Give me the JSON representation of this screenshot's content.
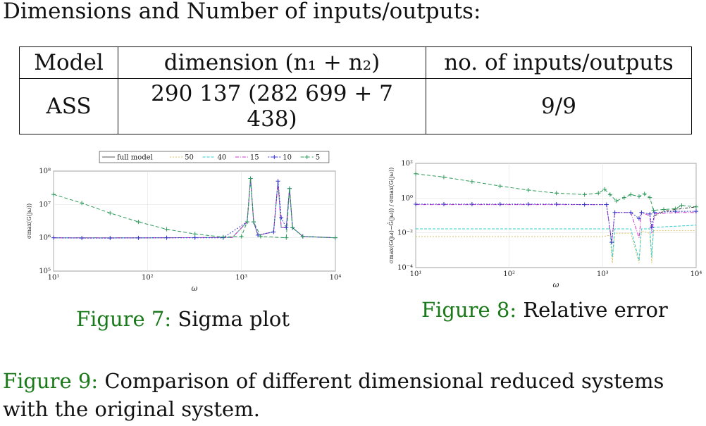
{
  "heading": "Dimensions and Number of inputs/outputs:",
  "table": {
    "headers": [
      "Model",
      "dimension (n₁ + n₂)",
      "no. of inputs/outputs"
    ],
    "rows": [
      [
        "ASS",
        "290 137 (282 699 + 7 438)",
        "9/9"
      ]
    ]
  },
  "captions": {
    "fig7_label": "Figure 7:",
    "fig7_text": "Sigma plot",
    "fig8_label": "Figure 8:",
    "fig8_text": "Relative error",
    "fig9_label": "Figure 9:",
    "fig9_text": "Comparison of different dimensional reduced systems with the original system."
  },
  "chart_data": [
    {
      "type": "line",
      "xscale": "log",
      "yscale": "log",
      "xlabel": "ω",
      "ylabel": "σmax(G(jω))",
      "xlim": [
        10,
        10000
      ],
      "ylim": [
        100000,
        100000000
      ],
      "xticks": [
        "10¹",
        "10²",
        "10³",
        "10⁴"
      ],
      "yticks": [
        "10⁵",
        "10⁶",
        "10⁷",
        "10⁸"
      ],
      "grid": true,
      "legend": "top",
      "series": [
        {
          "name": "full model",
          "color": "#555555",
          "dash": "",
          "marker": "",
          "points": [
            [
              10,
              1000000
            ],
            [
              100,
              1000000
            ],
            [
              800,
              1020000
            ],
            [
              1150,
              3000000
            ],
            [
              1250,
              60000000
            ],
            [
              1350,
              3000000
            ],
            [
              1500,
              1200000
            ],
            [
              2200,
              1500000
            ],
            [
              2450,
              50000000
            ],
            [
              2650,
              2000000
            ],
            [
              3000,
              2000000
            ],
            [
              3250,
              30000000
            ],
            [
              3500,
              2000000
            ],
            [
              4500,
              1100000
            ],
            [
              10000,
              1000000
            ]
          ]
        },
        {
          "name": "50",
          "color": "#d9c36a",
          "dash": "2,2",
          "marker": "",
          "points": [
            [
              10,
              1000000
            ],
            [
              100,
              1000000
            ],
            [
              800,
              1020000
            ],
            [
              1150,
              3000000
            ],
            [
              1250,
              60000000
            ],
            [
              1350,
              3000000
            ],
            [
              1500,
              1200000
            ],
            [
              2200,
              1500000
            ],
            [
              2450,
              50000000
            ],
            [
              2650,
              2000000
            ],
            [
              3000,
              2000000
            ],
            [
              3250,
              30000000
            ],
            [
              3500,
              2000000
            ],
            [
              4500,
              1100000
            ],
            [
              10000,
              1000000
            ]
          ]
        },
        {
          "name": "40",
          "color": "#33cccc",
          "dash": "4,2",
          "marker": "",
          "points": [
            [
              10,
              1000000
            ],
            [
              100,
              1000000
            ],
            [
              800,
              1020000
            ],
            [
              1150,
              3000000
            ],
            [
              1250,
              60000000
            ],
            [
              1350,
              3000000
            ],
            [
              1500,
              1200000
            ],
            [
              2200,
              1500000
            ],
            [
              2450,
              50000000
            ],
            [
              2650,
              2000000
            ],
            [
              3000,
              2000000
            ],
            [
              3250,
              30000000
            ],
            [
              3500,
              2000000
            ],
            [
              4500,
              1100000
            ],
            [
              10000,
              1000000
            ]
          ]
        },
        {
          "name": "15",
          "color": "#cc33cc",
          "dash": "5,2,1,2",
          "marker": "",
          "points": [
            [
              10,
              1000000
            ],
            [
              100,
              1000000
            ],
            [
              800,
              1020000
            ],
            [
              1150,
              3000000
            ],
            [
              1250,
              60000000
            ],
            [
              1350,
              3000000
            ],
            [
              1500,
              1200000
            ],
            [
              2200,
              1500000
            ],
            [
              2450,
              50000000
            ],
            [
              2650,
              2000000
            ],
            [
              3000,
              2000000
            ],
            [
              3250,
              30000000
            ],
            [
              3500,
              2000000
            ],
            [
              4500,
              1100000
            ],
            [
              10000,
              1000000
            ]
          ]
        },
        {
          "name": "10",
          "color": "#3333cc",
          "dash": "2,2",
          "marker": "+",
          "points": [
            [
              10,
              1000000
            ],
            [
              20,
              980000
            ],
            [
              40,
              980000
            ],
            [
              80,
              990000
            ],
            [
              160,
              1000000
            ],
            [
              320,
              1000000
            ],
            [
              640,
              1000000
            ],
            [
              1150,
              3000000
            ],
            [
              1250,
              60000000
            ],
            [
              1350,
              3000000
            ],
            [
              1500,
              1200000
            ],
            [
              2200,
              1500000
            ],
            [
              2450,
              50000000
            ],
            [
              2650,
              4000000
            ],
            [
              3000,
              2000000
            ],
            [
              3250,
              30000000
            ],
            [
              3500,
              2000000
            ],
            [
              4500,
              1100000
            ],
            [
              10000,
              1000000
            ]
          ]
        },
        {
          "name": "5",
          "color": "#2e9b5a",
          "dash": "5,3",
          "marker": "+",
          "points": [
            [
              10,
              20000000
            ],
            [
              20,
              11000000
            ],
            [
              40,
              5500000
            ],
            [
              80,
              3000000
            ],
            [
              160,
              1800000
            ],
            [
              320,
              1300000
            ],
            [
              640,
              1050000
            ],
            [
              1000,
              1100000
            ],
            [
              1150,
              3000000
            ],
            [
              1250,
              60000000
            ],
            [
              1350,
              3000000
            ],
            [
              1600,
              1100000
            ],
            [
              3000,
              1000000
            ],
            [
              3250,
              30000000
            ],
            [
              3500,
              2000000
            ],
            [
              4500,
              1100000
            ],
            [
              10000,
              1000000
            ]
          ]
        }
      ]
    },
    {
      "type": "line",
      "xscale": "log",
      "yscale": "log",
      "xlabel": "ω",
      "ylabel": "σmax(G(jω)−Ĝ(jω)) / σmax(G(jω))",
      "xlim": [
        10,
        10000
      ],
      "ylim": [
        1e-05,
        100
      ],
      "xticks": [
        "10¹",
        "10²",
        "10³",
        "10⁴"
      ],
      "yticks": [
        "10⁻⁴",
        "10⁻²",
        "10⁰",
        "10²"
      ],
      "grid": true,
      "series": [
        {
          "name": "50",
          "color": "#d9c36a",
          "dash": "2,2",
          "marker": "",
          "points": [
            [
              10,
              0.0012
            ],
            [
              200,
              0.0012
            ],
            [
              1000,
              0.0012
            ],
            [
              1200,
              0.0015
            ],
            [
              1270,
              2e-05
            ],
            [
              1350,
              0.002
            ],
            [
              2000,
              0.002
            ],
            [
              2450,
              2e-05
            ],
            [
              2600,
              0.003
            ],
            [
              3200,
              0.002
            ],
            [
              3350,
              2e-05
            ],
            [
              3500,
              0.003
            ],
            [
              10000,
              0.003
            ]
          ]
        },
        {
          "name": "40",
          "color": "#33cccc",
          "dash": "4,2",
          "marker": "",
          "points": [
            [
              10,
              0.004
            ],
            [
              200,
              0.004
            ],
            [
              1000,
              0.004
            ],
            [
              1200,
              0.004
            ],
            [
              1270,
              5e-05
            ],
            [
              1350,
              0.004
            ],
            [
              2000,
              0.004
            ],
            [
              2450,
              3e-05
            ],
            [
              2600,
              0.004
            ],
            [
              3200,
              0.004
            ],
            [
              3350,
              5e-05
            ],
            [
              3500,
              0.005
            ],
            [
              10000,
              0.007
            ]
          ]
        },
        {
          "name": "15",
          "color": "#cc33cc",
          "dash": "5,2,1,2",
          "marker": "",
          "points": [
            [
              10,
              0.17
            ],
            [
              100,
              0.17
            ],
            [
              500,
              0.17
            ],
            [
              1100,
              0.17
            ],
            [
              1250,
              0.0005
            ],
            [
              1350,
              0.05
            ],
            [
              2000,
              0.05
            ],
            [
              2450,
              0.001
            ],
            [
              2600,
              0.05
            ],
            [
              3200,
              0.03
            ],
            [
              3350,
              0.002
            ],
            [
              3600,
              0.04
            ],
            [
              6000,
              0.05
            ],
            [
              10000,
              0.05
            ]
          ]
        },
        {
          "name": "10",
          "color": "#3333cc",
          "dash": "2,2",
          "marker": "+",
          "points": [
            [
              10,
              0.18
            ],
            [
              20,
              0.18
            ],
            [
              40,
              0.18
            ],
            [
              80,
              0.18
            ],
            [
              160,
              0.18
            ],
            [
              320,
              0.18
            ],
            [
              640,
              0.17
            ],
            [
              1100,
              0.17
            ],
            [
              1250,
              0.0005
            ],
            [
              1350,
              0.05
            ],
            [
              2000,
              0.05
            ],
            [
              2450,
              0.02
            ],
            [
              2600,
              0.05
            ],
            [
              3200,
              0.04
            ],
            [
              3350,
              0.005
            ],
            [
              3600,
              0.05
            ],
            [
              6000,
              0.06
            ],
            [
              10000,
              0.06
            ]
          ]
        },
        {
          "name": "5",
          "color": "#2e9b5a",
          "dash": "5,3",
          "marker": "+",
          "points": [
            [
              10,
              20
            ],
            [
              20,
              12
            ],
            [
              40,
              6
            ],
            [
              80,
              3
            ],
            [
              160,
              1.6
            ],
            [
              320,
              1
            ],
            [
              640,
              0.8
            ],
            [
              900,
              1
            ],
            [
              1050,
              1.8
            ],
            [
              1200,
              0.8
            ],
            [
              1400,
              0.3
            ],
            [
              1700,
              0.5
            ],
            [
              2000,
              0.8
            ],
            [
              2450,
              0.6
            ],
            [
              2800,
              0.9
            ],
            [
              3200,
              0.5
            ],
            [
              3500,
              0.07
            ],
            [
              4500,
              0.08
            ],
            [
              6000,
              0.09
            ],
            [
              7000,
              0.15
            ],
            [
              10000,
              0.12
            ]
          ]
        },
        {
          "name": "full model",
          "color": "#333333",
          "dash": "4,2,1,2",
          "marker": "",
          "points": [
            [
              3600,
              0.03
            ],
            [
              4500,
              0.06
            ],
            [
              6000,
              0.08
            ],
            [
              8000,
              0.1
            ],
            [
              10000,
              0.12
            ]
          ]
        }
      ]
    }
  ]
}
